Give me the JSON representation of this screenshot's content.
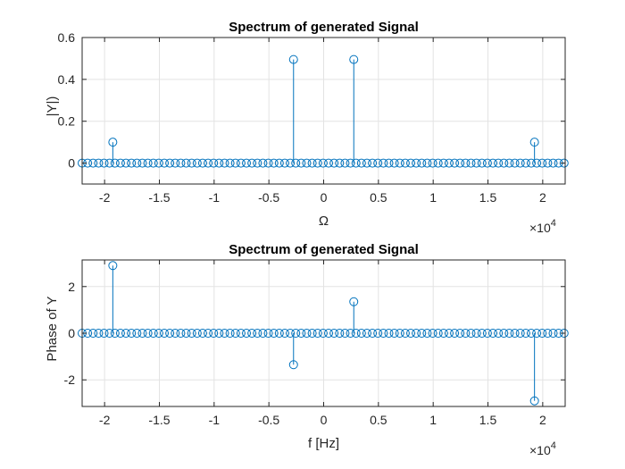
{
  "figure": {
    "background": "#ffffff",
    "axes_background": "#ffffff",
    "stem_color": "#0072bd",
    "grid_color": "#e3e3e3",
    "axis_color": "#262626"
  },
  "chart_data": [
    {
      "type": "stem",
      "title": "Spectrum of generated Signal",
      "xlabel": "Ω",
      "ylabel": "|Y|)",
      "xlim": [
        -22050,
        22050
      ],
      "ylim": [
        -0.1,
        0.6
      ],
      "grid": true,
      "x_multiplier": "×10",
      "x_multiplier_exp": "4",
      "xticks": [
        -20000,
        -15000,
        -10000,
        -5000,
        0,
        5000,
        10000,
        15000,
        20000
      ],
      "xtick_labels": [
        "-2",
        "-1.5",
        "-1",
        "-0.5",
        "0",
        "0.5",
        "1",
        "1.5",
        "2"
      ],
      "yticks": [
        0,
        0.2,
        0.4,
        0.6
      ],
      "ytick_labels": [
        "0",
        "0.2",
        "0.4",
        "0.6"
      ],
      "n_points": 89,
      "x_start": -22050,
      "x_step": 500,
      "nonzero": [
        {
          "x": -19250,
          "y": 0.1
        },
        {
          "x": -2750,
          "y": 0.495
        },
        {
          "x": 2750,
          "y": 0.495
        },
        {
          "x": 19250,
          "y": 0.1
        }
      ]
    },
    {
      "type": "stem",
      "title": "Spectrum of generated Signal",
      "xlabel": "f [Hz]",
      "ylabel": "Phase of Y",
      "xlim": [
        -22050,
        22050
      ],
      "ylim": [
        -3.14,
        3.14
      ],
      "grid": true,
      "x_multiplier": "×10",
      "x_multiplier_exp": "4",
      "xticks": [
        -20000,
        -15000,
        -10000,
        -5000,
        0,
        5000,
        10000,
        15000,
        20000
      ],
      "xtick_labels": [
        "-2",
        "-1.5",
        "-1",
        "-0.5",
        "0",
        "0.5",
        "1",
        "1.5",
        "2"
      ],
      "yticks": [
        -2,
        0,
        2
      ],
      "ytick_labels": [
        "-2",
        "0",
        "2"
      ],
      "n_points": 89,
      "x_start": -22050,
      "x_step": 500,
      "nonzero": [
        {
          "x": -19250,
          "y": 2.9
        },
        {
          "x": -2750,
          "y": -1.35
        },
        {
          "x": 2750,
          "y": 1.35
        },
        {
          "x": 19250,
          "y": -2.9
        }
      ]
    }
  ]
}
